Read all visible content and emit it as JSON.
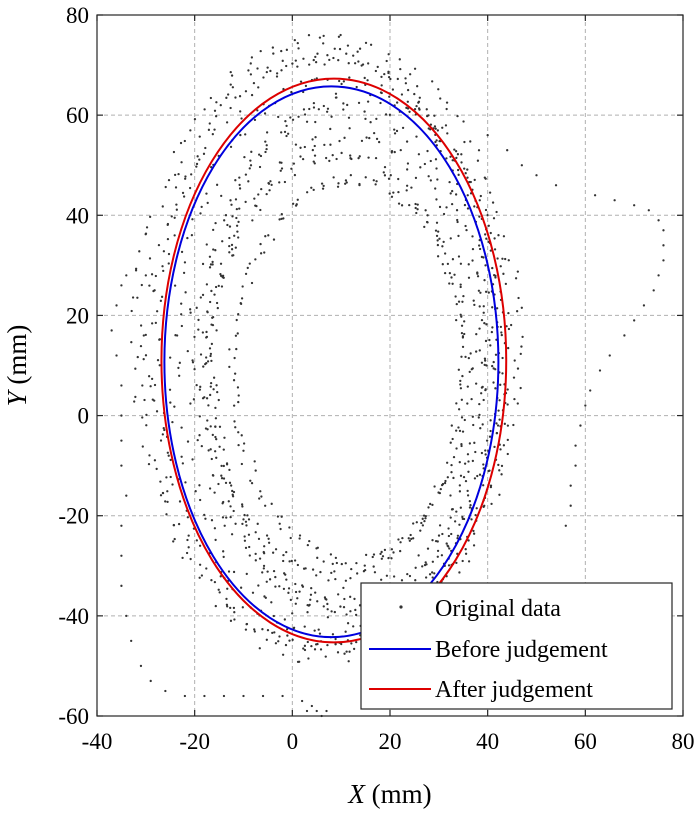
{
  "chart_data": {
    "type": "scatter",
    "xlabel_var": "X",
    "xlabel_unit": " (mm)",
    "ylabel_var": "Y",
    "ylabel_unit": " (mm)",
    "xlim": [
      -40,
      80
    ],
    "ylim": [
      -60,
      80
    ],
    "xticks": [
      -40,
      -20,
      0,
      20,
      40,
      60,
      80
    ],
    "yticks": [
      -60,
      -40,
      -20,
      0,
      20,
      40,
      60,
      80
    ],
    "xtick_labels": [
      "-40",
      "-20",
      "0",
      "20",
      "40",
      "60",
      "80"
    ],
    "ytick_labels": [
      "-60",
      "-40",
      "-20",
      "0",
      "20",
      "40",
      "60",
      "80"
    ],
    "grid": true,
    "legend_position": "bottom-right",
    "legend": [
      {
        "label": "Original data",
        "marker": "dot",
        "color": "#333333"
      },
      {
        "label": "Before judgement",
        "marker": "line",
        "color": "#0000dd"
      },
      {
        "label": "After judgement",
        "marker": "line",
        "color": "#dd0000"
      }
    ],
    "series": [
      {
        "name": "Original data",
        "kind": "points",
        "color": "#333333",
        "loops": [
          {
            "cx": 8,
            "cy": 13,
            "rx": 36,
            "ry": 58,
            "jitter": 1.2
          },
          {
            "cx": 9,
            "cy": 12,
            "rx": 33,
            "ry": 55,
            "jitter": 1.4
          },
          {
            "cx": 10,
            "cy": 11,
            "rx": 30,
            "ry": 50,
            "jitter": 1.5
          },
          {
            "cx": 11,
            "cy": 10,
            "rx": 28,
            "ry": 46,
            "jitter": 1.6
          },
          {
            "cx": 7,
            "cy": 14,
            "rx": 39,
            "ry": 61,
            "jitter": 1.3
          },
          {
            "cx": 9,
            "cy": 10,
            "rx": 26,
            "ry": 42,
            "jitter": 1.2
          },
          {
            "cx": 12,
            "cy": 9,
            "rx": 24,
            "ry": 38,
            "jitter": 1.2
          },
          {
            "cx": 6,
            "cy": 12,
            "rx": 35,
            "ry": 60,
            "jitter": 2.0
          },
          {
            "cx": 13,
            "cy": 12,
            "rx": 31,
            "ry": 52,
            "jitter": 1.8
          }
        ],
        "outliers": [
          [
            62,
            44
          ],
          [
            66,
            43
          ],
          [
            70,
            42
          ],
          [
            73,
            41
          ],
          [
            75,
            39
          ],
          [
            76,
            37
          ],
          [
            76,
            34
          ],
          [
            76,
            31
          ],
          [
            75,
            28
          ],
          [
            74,
            25
          ],
          [
            72,
            22
          ],
          [
            70,
            19
          ],
          [
            68,
            16
          ],
          [
            65,
            12
          ],
          [
            63,
            9
          ],
          [
            61,
            5
          ],
          [
            60,
            2
          ],
          [
            59,
            -2
          ],
          [
            58,
            -6
          ],
          [
            58,
            -10
          ],
          [
            57,
            -14
          ],
          [
            57,
            -18
          ],
          [
            56,
            -22
          ],
          [
            54,
            46
          ],
          [
            50,
            48
          ],
          [
            47,
            50
          ],
          [
            44,
            53
          ],
          [
            40,
            56
          ],
          [
            -35,
            26
          ],
          [
            -34,
            28
          ],
          [
            -32,
            29
          ],
          [
            -30,
            28
          ],
          [
            -36,
            22
          ],
          [
            -37,
            17
          ],
          [
            -36,
            12
          ],
          [
            -35,
            6
          ],
          [
            -35,
            0
          ],
          [
            -35,
            -5
          ],
          [
            -35,
            -10
          ],
          [
            -34,
            -16
          ],
          [
            -35,
            -22
          ],
          [
            -35,
            -28
          ],
          [
            -35,
            -34
          ],
          [
            -34,
            -40
          ],
          [
            -33,
            -45
          ],
          [
            -31,
            -50
          ],
          [
            -29,
            -53
          ],
          [
            -26,
            -55
          ],
          [
            -22,
            -56
          ],
          [
            -18,
            -56
          ],
          [
            -14,
            -56
          ],
          [
            -10,
            -56
          ],
          [
            -6,
            -56
          ],
          [
            -2,
            -56
          ],
          [
            2,
            -57
          ],
          [
            4,
            -58
          ],
          [
            5,
            -59
          ],
          [
            6,
            -60
          ],
          [
            7,
            -59
          ],
          [
            3,
            -59
          ]
        ]
      },
      {
        "name": "Before judgement",
        "kind": "ellipse",
        "color": "#0000dd",
        "cx": 8.0,
        "cy": 10.75,
        "rx": 34.2,
        "ry": 55.0
      },
      {
        "name": "After judgement",
        "kind": "ellipse",
        "color": "#dd0000",
        "cx": 8.5,
        "cy": 11.0,
        "rx": 35.3,
        "ry": 56.3
      }
    ]
  }
}
